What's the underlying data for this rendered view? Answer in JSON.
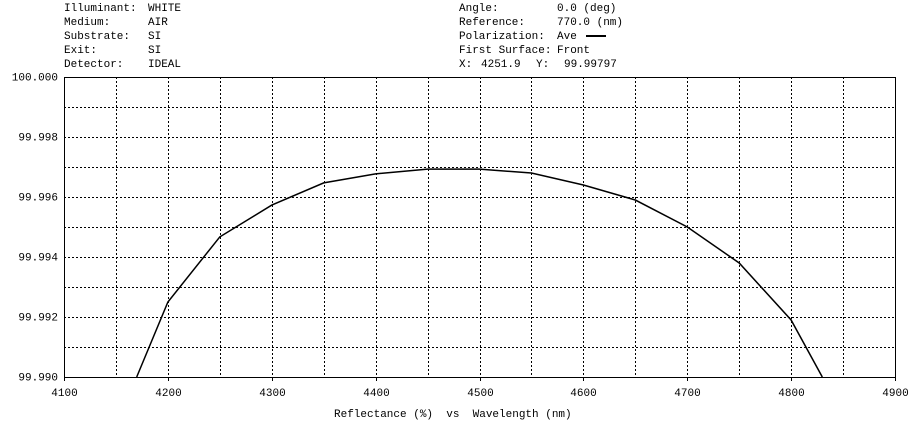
{
  "chart_data": {
    "type": "line",
    "info_left": [
      {
        "label": "Illuminant:",
        "value": "WHITE"
      },
      {
        "label": "Medium:",
        "value": "AIR"
      },
      {
        "label": "Substrate:",
        "value": "SI"
      },
      {
        "label": "Exit:",
        "value": "SI"
      },
      {
        "label": "Detector:",
        "value": "IDEAL"
      }
    ],
    "info_right": [
      {
        "label": "Angle:",
        "value": "0.0 (deg)"
      },
      {
        "label": "Reference:",
        "value": "770.0 (nm)"
      },
      {
        "label": "Polarization:",
        "value": "Ave"
      },
      {
        "label": "First Surface:",
        "value": "Front"
      }
    ],
    "cursor": {
      "x_label": "X:",
      "x_value": "4251.9",
      "y_label": "Y:",
      "y_value": "99.99797"
    },
    "axis_title": "Reflectance (%)  vs  Wavelength (nm)",
    "x": [
      4170,
      4200,
      4250,
      4300,
      4350,
      4400,
      4450,
      4500,
      4550,
      4600,
      4650,
      4700,
      4750,
      4800,
      4830
    ],
    "series": [
      {
        "name": "Ave",
        "color": "#000000",
        "values": [
          99.99,
          99.9925,
          99.99467,
          99.99573,
          99.99647,
          99.99677,
          99.99693,
          99.99693,
          99.9968,
          99.9964,
          99.9959,
          99.995,
          99.9938,
          99.9919,
          99.99
        ]
      }
    ],
    "xlim": [
      4100,
      4900
    ],
    "ylim": [
      99.99,
      100
    ],
    "xticks": [
      4100,
      4200,
      4300,
      4400,
      4500,
      4600,
      4700,
      4800,
      4900
    ],
    "yticks": [
      {
        "value": 99.99,
        "label": "99.990"
      },
      99.992,
      99.994,
      99.996,
      99.998,
      {
        "value": 100,
        "label": "100.000"
      }
    ],
    "xgrid_minor": [
      4150,
      4250,
      4350,
      4450,
      4550,
      4650,
      4750,
      4850
    ],
    "ygrid_minor": [
      99.991,
      99.993,
      99.995,
      99.997,
      99.999
    ],
    "grid": true
  }
}
